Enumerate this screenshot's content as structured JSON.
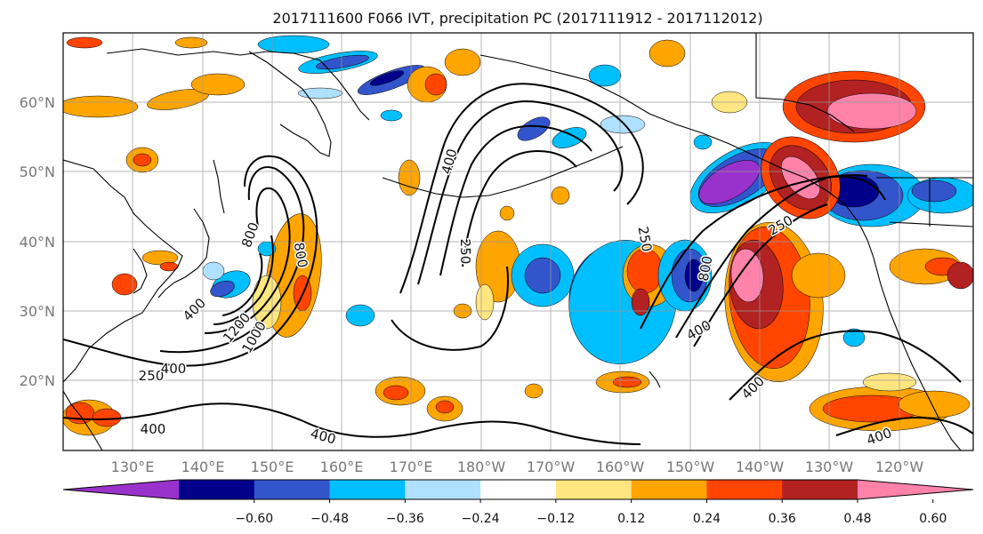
{
  "title": "2017111600 F066 IVT, precipitation PC (2017111912 - 2017112012)",
  "map": {
    "lat_ticks": [
      "60°N",
      "50°N",
      "40°N",
      "30°N",
      "20°N"
    ],
    "lon_ticks": [
      "130°E",
      "140°E",
      "150°E",
      "160°E",
      "170°E",
      "180°W",
      "170°W",
      "160°W",
      "150°W",
      "140°W",
      "130°W",
      "120°W"
    ],
    "contour_labels": [
      "400",
      "800",
      "800",
      "1200",
      "1000",
      "400",
      "250",
      "250",
      "400",
      "400",
      "800",
      "250",
      "250",
      "400",
      "400",
      "400",
      "400"
    ],
    "fill_colors": {
      "neg_strong": "#9932cc",
      "neg_navy": "#00008b",
      "neg_blue": "#3355cc",
      "neg_cyan": "#00bfff",
      "neg_light": "#b0e0ff",
      "pos_yellow": "#ffe680",
      "pos_orange": "#ffa500",
      "pos_red": "#ff4500",
      "pos_darkred": "#b22222",
      "pos_pink": "#ff82ab"
    }
  },
  "colorbar": {
    "colors": [
      "#9932cc",
      "#00008b",
      "#3355cc",
      "#00bfff",
      "#b0e0ff",
      "#ffffff",
      "#ffe680",
      "#ffa500",
      "#ff4500",
      "#b22222",
      "#ff82ab"
    ],
    "ticks": [
      "−0.60",
      "−0.48",
      "−0.36",
      "−0.24",
      "−0.12",
      "0.12",
      "0.24",
      "0.36",
      "0.48",
      "0.60"
    ]
  }
}
